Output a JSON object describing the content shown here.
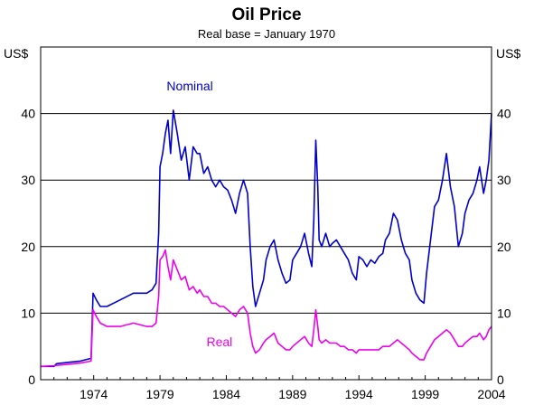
{
  "chart_data": {
    "type": "line",
    "title": "Oil Price",
    "subtitle": "Real base = January 1970",
    "ylabel_left": "US$",
    "ylabel_right": "US$",
    "xlim": [
      1970,
      2004
    ],
    "ylim": [
      0,
      50
    ],
    "y_ticks": [
      0,
      10,
      20,
      30,
      40
    ],
    "y_tick_labels": [
      "0",
      "10",
      "20",
      "30",
      "40"
    ],
    "x_ticks": [
      1974,
      1979,
      1984,
      1989,
      1994,
      1999,
      2004
    ],
    "x_tick_labels": [
      "1974",
      "1979",
      "1984",
      "1989",
      "1994",
      "1999",
      "2004"
    ],
    "grid": true,
    "colors": {
      "nominal": "#0000cc",
      "real": "#ee00ee",
      "grid": "#000000"
    },
    "series": [
      {
        "name": "Nominal",
        "x": [
          1970.0,
          1971.0,
          1971.2,
          1972.0,
          1973.0,
          1973.8,
          1973.95,
          1974.2,
          1974.5,
          1975.0,
          1976.0,
          1977.0,
          1978.0,
          1978.4,
          1978.7,
          1978.9,
          1979.0,
          1979.2,
          1979.4,
          1979.6,
          1979.8,
          1980.0,
          1980.3,
          1980.6,
          1980.9,
          1981.2,
          1981.5,
          1981.8,
          1982.0,
          1982.3,
          1982.6,
          1982.9,
          1983.2,
          1983.5,
          1983.8,
          1984.1,
          1984.4,
          1984.7,
          1985.0,
          1985.3,
          1985.6,
          1985.8,
          1986.0,
          1986.2,
          1986.5,
          1986.8,
          1987.0,
          1987.3,
          1987.6,
          1987.9,
          1988.2,
          1988.5,
          1988.8,
          1989.0,
          1989.3,
          1989.6,
          1989.9,
          1990.2,
          1990.45,
          1990.6,
          1990.75,
          1990.9,
          1991.0,
          1991.2,
          1991.5,
          1991.8,
          1992.0,
          1992.3,
          1992.6,
          1992.9,
          1993.2,
          1993.5,
          1993.8,
          1994.0,
          1994.3,
          1994.6,
          1994.9,
          1995.2,
          1995.5,
          1995.8,
          1996.0,
          1996.3,
          1996.6,
          1996.9,
          1997.2,
          1997.5,
          1997.8,
          1998.0,
          1998.3,
          1998.6,
          1998.9,
          1999.1,
          1999.4,
          1999.7,
          2000.0,
          2000.3,
          2000.6,
          2000.9,
          2001.2,
          2001.5,
          2001.8,
          2002.0,
          2002.3,
          2002.6,
          2002.9,
          2003.1,
          2003.4,
          2003.6,
          2003.8,
          2004.0
        ],
        "y": [
          2.0,
          2.0,
          2.4,
          2.6,
          2.8,
          3.2,
          13.0,
          12.0,
          11.0,
          11.0,
          12.0,
          13.0,
          13.0,
          13.5,
          14.5,
          22.0,
          32.0,
          34.0,
          37.0,
          39.0,
          34.0,
          40.5,
          37.0,
          33.0,
          35.0,
          30.0,
          35.0,
          34.0,
          34.0,
          31.0,
          32.0,
          30.0,
          29.0,
          30.0,
          29.0,
          28.5,
          27.0,
          25.0,
          28.0,
          30.0,
          28.0,
          20.0,
          14.0,
          11.0,
          13.0,
          15.0,
          18.0,
          20.0,
          21.0,
          18.0,
          16.0,
          14.5,
          15.0,
          18.0,
          19.0,
          20.0,
          22.0,
          19.0,
          17.0,
          24.0,
          36.0,
          29.0,
          21.0,
          20.0,
          22.0,
          20.0,
          20.5,
          21.0,
          20.0,
          19.0,
          18.0,
          16.0,
          15.0,
          18.5,
          18.0,
          17.0,
          18.0,
          17.5,
          18.5,
          19.0,
          21.0,
          22.0,
          25.0,
          24.0,
          21.0,
          19.0,
          18.0,
          15.0,
          13.0,
          12.0,
          11.5,
          16.0,
          21.0,
          26.0,
          27.0,
          30.0,
          34.0,
          29.0,
          26.0,
          20.0,
          22.0,
          25.0,
          27.0,
          28.0,
          30.0,
          32.0,
          28.0,
          30.0,
          33.0,
          40.0
        ]
      },
      {
        "name": "Real",
        "x": [
          1970.0,
          1971.0,
          1972.0,
          1973.0,
          1973.8,
          1973.95,
          1974.2,
          1974.5,
          1975.0,
          1976.0,
          1977.0,
          1978.0,
          1978.4,
          1978.7,
          1978.9,
          1979.0,
          1979.2,
          1979.4,
          1979.6,
          1979.8,
          1980.0,
          1980.3,
          1980.6,
          1980.9,
          1981.2,
          1981.5,
          1981.8,
          1982.0,
          1982.3,
          1982.6,
          1982.9,
          1983.2,
          1983.5,
          1983.8,
          1984.1,
          1984.4,
          1984.7,
          1985.0,
          1985.3,
          1985.6,
          1985.8,
          1986.0,
          1986.2,
          1986.5,
          1986.8,
          1987.0,
          1987.3,
          1987.6,
          1987.9,
          1988.2,
          1988.5,
          1988.8,
          1989.0,
          1989.3,
          1989.6,
          1989.9,
          1990.2,
          1990.45,
          1990.6,
          1990.75,
          1990.9,
          1991.0,
          1991.2,
          1991.5,
          1991.8,
          1992.0,
          1992.3,
          1992.6,
          1992.9,
          1993.2,
          1993.5,
          1993.8,
          1994.0,
          1994.3,
          1994.6,
          1994.9,
          1995.2,
          1995.5,
          1995.8,
          1996.0,
          1996.3,
          1996.6,
          1996.9,
          1997.2,
          1997.5,
          1997.8,
          1998.0,
          1998.3,
          1998.6,
          1998.9,
          1999.1,
          1999.4,
          1999.7,
          2000.0,
          2000.3,
          2000.6,
          2000.9,
          2001.2,
          2001.5,
          2001.8,
          2002.0,
          2002.3,
          2002.6,
          2002.9,
          2003.1,
          2003.4,
          2003.6,
          2003.8,
          2004.0
        ],
        "y": [
          2.0,
          2.1,
          2.3,
          2.5,
          2.8,
          10.5,
          9.5,
          8.5,
          8.0,
          8.0,
          8.5,
          8.0,
          8.0,
          8.5,
          12.5,
          18.0,
          18.5,
          19.5,
          17.0,
          15.0,
          18.0,
          16.5,
          15.0,
          15.5,
          13.5,
          14.0,
          13.0,
          13.5,
          12.5,
          12.5,
          11.5,
          11.5,
          11.0,
          11.0,
          10.5,
          10.0,
          9.5,
          10.5,
          11.0,
          10.0,
          7.0,
          5.0,
          4.0,
          4.5,
          5.5,
          6.0,
          6.5,
          7.0,
          5.5,
          5.0,
          4.5,
          4.5,
          5.0,
          5.5,
          6.0,
          6.5,
          5.5,
          5.0,
          7.5,
          10.5,
          8.0,
          6.0,
          5.5,
          6.0,
          5.5,
          5.5,
          5.5,
          5.0,
          5.0,
          4.5,
          4.5,
          4.0,
          4.5,
          4.5,
          4.5,
          4.5,
          4.5,
          4.5,
          5.0,
          5.0,
          5.0,
          5.5,
          6.0,
          5.5,
          5.0,
          4.5,
          4.0,
          3.5,
          3.0,
          3.0,
          4.0,
          5.0,
          6.0,
          6.5,
          7.0,
          7.5,
          7.0,
          6.0,
          5.0,
          5.0,
          5.5,
          6.0,
          6.5,
          6.5,
          7.0,
          6.0,
          6.5,
          7.5,
          8.0
        ]
      }
    ],
    "annotations": [
      {
        "text": "Nominal",
        "x": 1979.5,
        "y": 43.5,
        "series": "Nominal"
      },
      {
        "text": "Real",
        "x": 1982.5,
        "y": 5.0,
        "series": "Real"
      }
    ]
  }
}
